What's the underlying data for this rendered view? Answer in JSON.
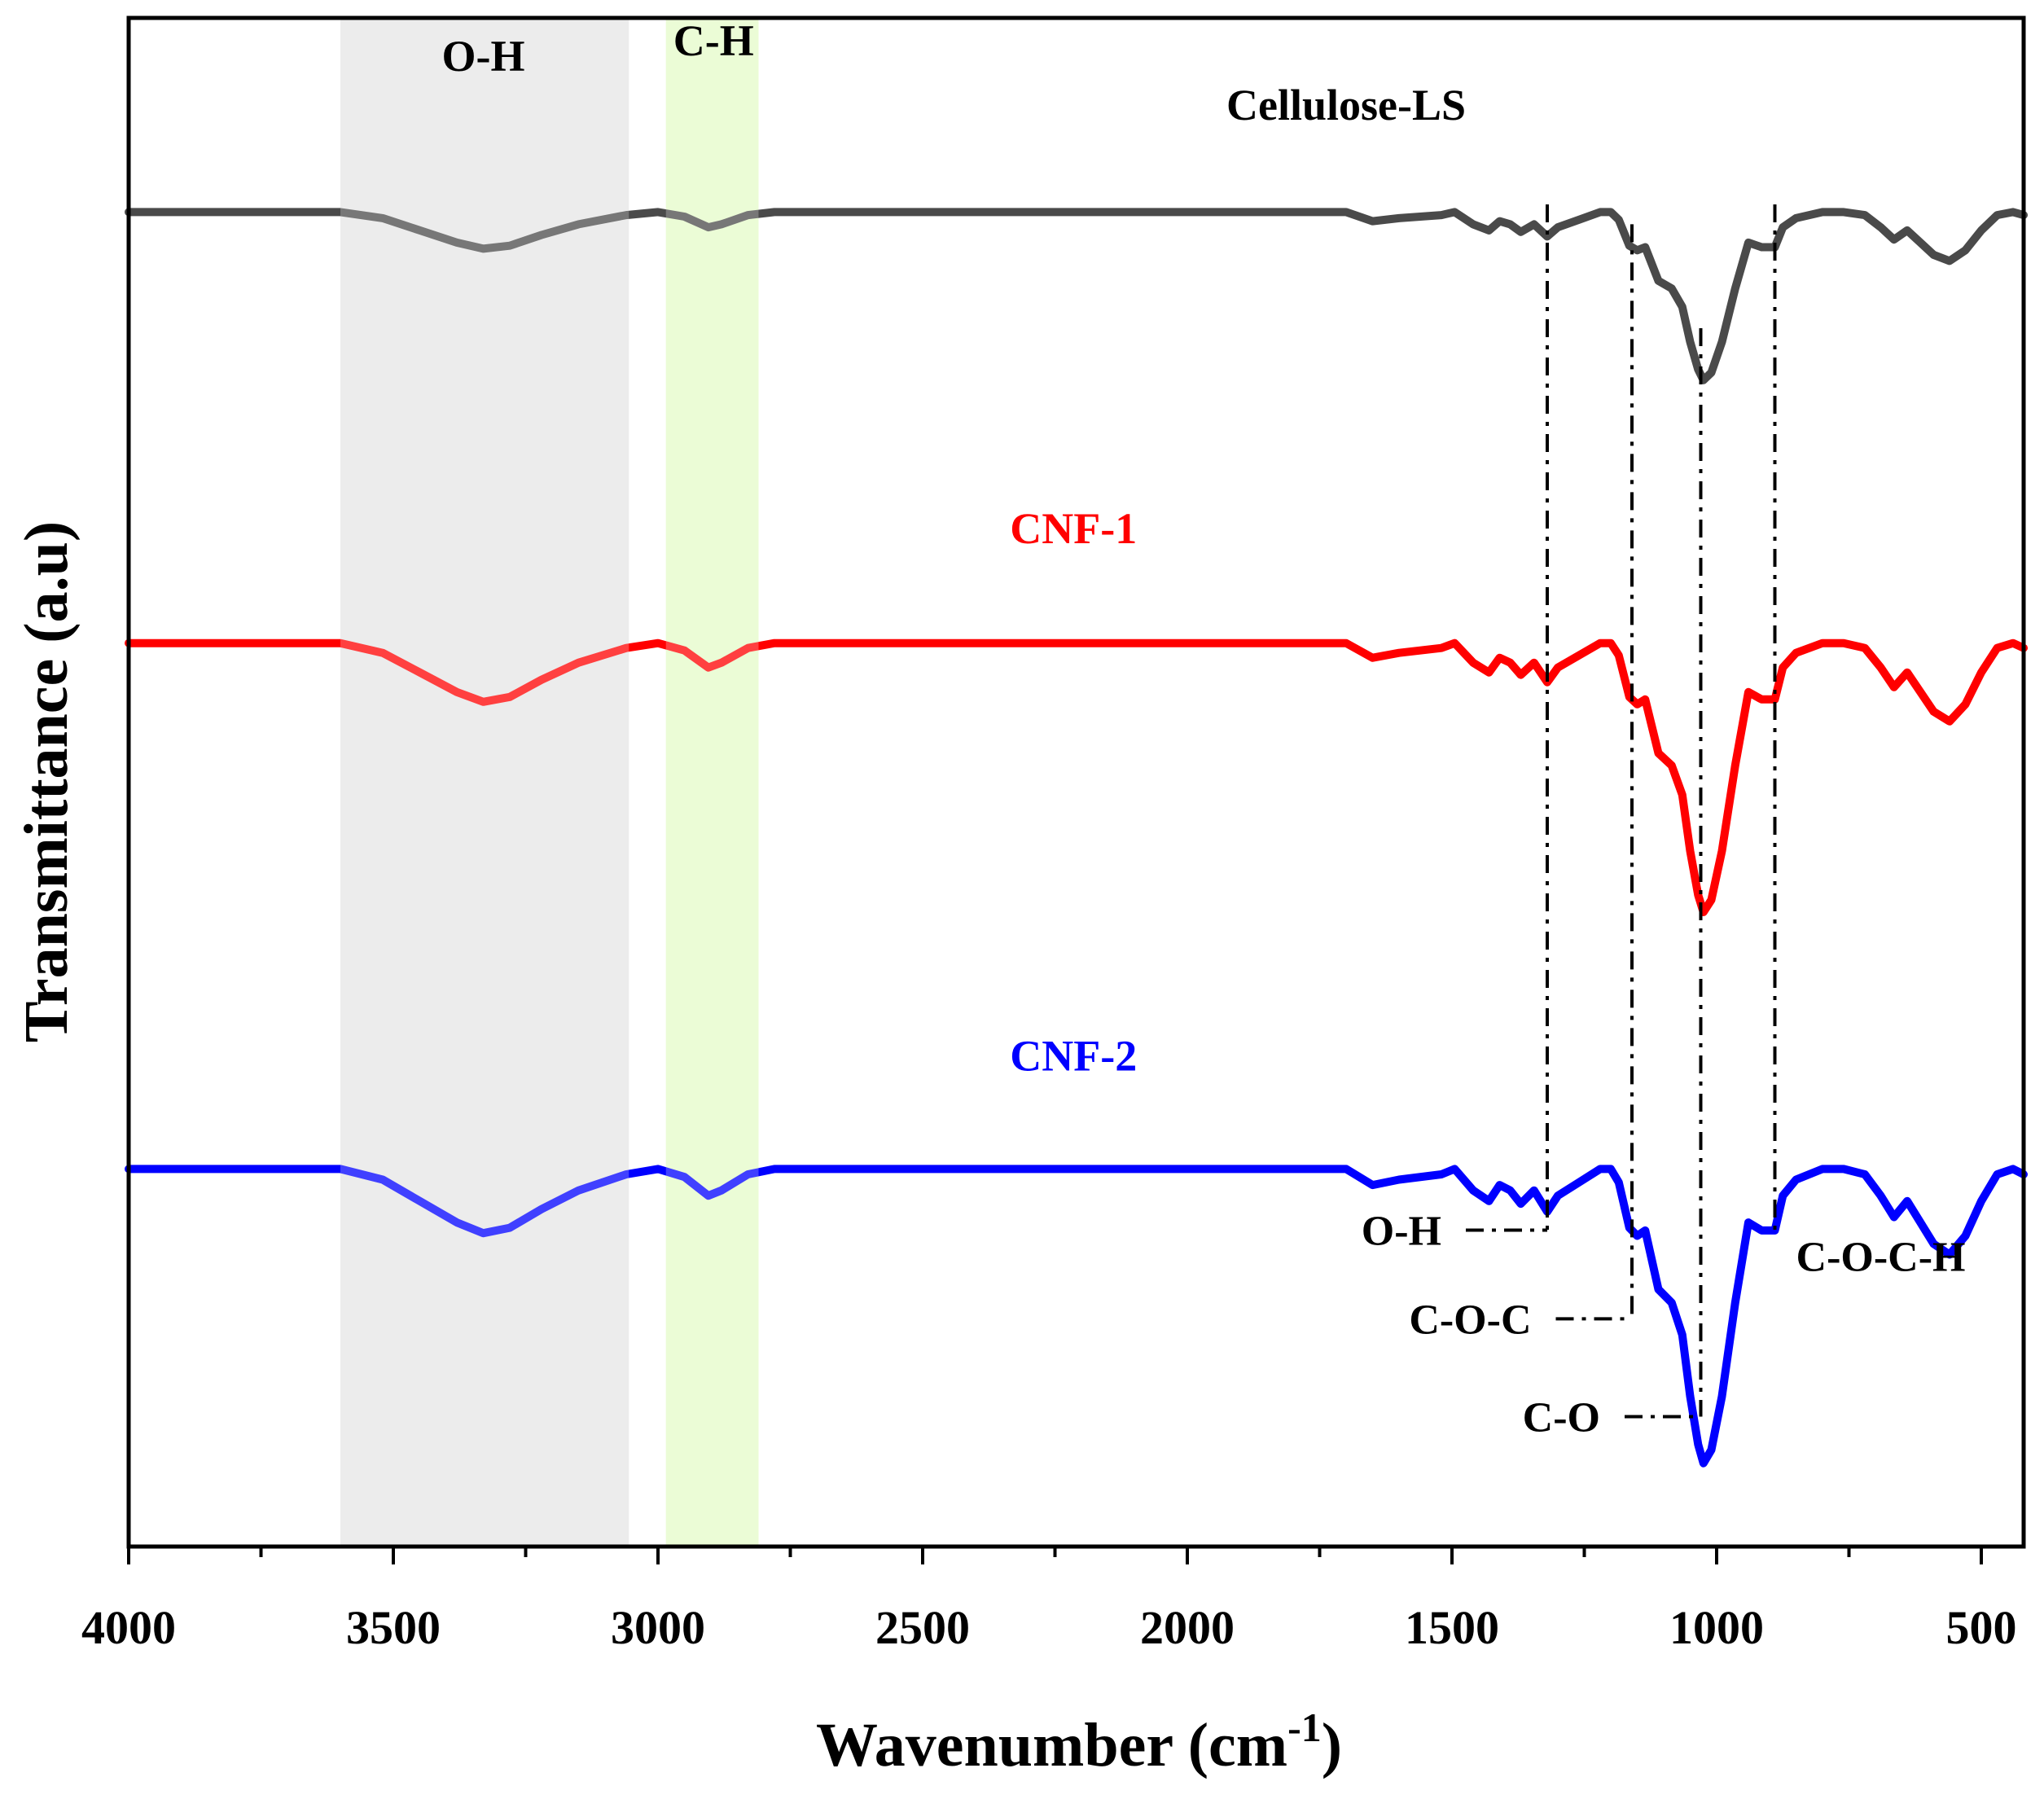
{
  "chart_data": {
    "type": "line",
    "title": "",
    "xlabel": "Wavenumber (cm",
    "xlabel_sup": "-1",
    "xlabel_close": ")",
    "ylabel": "Transmittance (a.u)",
    "xlim": [
      4000,
      420
    ],
    "ylim": [
      0,
      1
    ],
    "x_ticks": [
      4000,
      3500,
      3000,
      2500,
      2000,
      1500,
      1000,
      500
    ],
    "x_tick_labels": [
      "4000",
      "3500",
      "3000",
      "2500",
      "2000",
      "1500",
      "1000",
      "500"
    ],
    "bands": [
      {
        "label": "O-H",
        "from": 3600,
        "to": 3055,
        "color": "#e6e6e6"
      },
      {
        "label": "C-H",
        "from": 2985,
        "to": 2810,
        "color": "#e5fbc8"
      }
    ],
    "series": [
      {
        "name": "Cellulose-LS",
        "color": "#4a4a4a",
        "offset": 0.873,
        "depth_scale": 1.0,
        "points": [
          [
            4000,
            0
          ],
          [
            3600,
            0
          ],
          [
            3520,
            0.004
          ],
          [
            3450,
            0.012
          ],
          [
            3380,
            0.02
          ],
          [
            3330,
            0.024
          ],
          [
            3280,
            0.022
          ],
          [
            3220,
            0.015
          ],
          [
            3150,
            0.008
          ],
          [
            3060,
            0.002
          ],
          [
            3000,
            0
          ],
          [
            2950,
            0.003
          ],
          [
            2905,
            0.01
          ],
          [
            2880,
            0.008
          ],
          [
            2830,
            0.002
          ],
          [
            2780,
            0
          ],
          [
            2500,
            0
          ],
          [
            2000,
            0
          ],
          [
            1700,
            0
          ],
          [
            1650,
            0.006
          ],
          [
            1600,
            0.004
          ],
          [
            1520,
            0.002
          ],
          [
            1495,
            0
          ],
          [
            1460,
            0.008
          ],
          [
            1430,
            0.012
          ],
          [
            1410,
            0.006
          ],
          [
            1390,
            0.008
          ],
          [
            1370,
            0.013
          ],
          [
            1345,
            0.008
          ],
          [
            1320,
            0.016
          ],
          [
            1300,
            0.01
          ],
          [
            1260,
            0.005
          ],
          [
            1220,
            0
          ],
          [
            1200,
            0
          ],
          [
            1185,
            0.005
          ],
          [
            1165,
            0.022
          ],
          [
            1150,
            0.025
          ],
          [
            1135,
            0.023
          ],
          [
            1110,
            0.045
          ],
          [
            1085,
            0.05
          ],
          [
            1065,
            0.062
          ],
          [
            1050,
            0.085
          ],
          [
            1035,
            0.103
          ],
          [
            1025,
            0.11
          ],
          [
            1010,
            0.105
          ],
          [
            990,
            0.085
          ],
          [
            965,
            0.05
          ],
          [
            940,
            0.02
          ],
          [
            915,
            0.023
          ],
          [
            890,
            0.023
          ],
          [
            875,
            0.01
          ],
          [
            850,
            0.004
          ],
          [
            800,
            0
          ],
          [
            760,
            0
          ],
          [
            720,
            0.002
          ],
          [
            690,
            0.01
          ],
          [
            665,
            0.018
          ],
          [
            640,
            0.012
          ],
          [
            615,
            0.02
          ],
          [
            590,
            0.028
          ],
          [
            560,
            0.032
          ],
          [
            530,
            0.025
          ],
          [
            500,
            0.012
          ],
          [
            470,
            0.002
          ],
          [
            440,
            0
          ],
          [
            420,
            0.002
          ]
        ]
      },
      {
        "name": "CNF-1",
        "color": "#ff0000",
        "offset": 0.591,
        "depth_scale": 1.6,
        "points": [
          [
            4000,
            0
          ],
          [
            3600,
            0
          ],
          [
            3520,
            0.004
          ],
          [
            3450,
            0.012
          ],
          [
            3380,
            0.02
          ],
          [
            3330,
            0.024
          ],
          [
            3280,
            0.022
          ],
          [
            3220,
            0.015
          ],
          [
            3150,
            0.008
          ],
          [
            3060,
            0.002
          ],
          [
            3000,
            0
          ],
          [
            2950,
            0.003
          ],
          [
            2905,
            0.01
          ],
          [
            2880,
            0.008
          ],
          [
            2830,
            0.002
          ],
          [
            2780,
            0
          ],
          [
            2500,
            0
          ],
          [
            2000,
            0
          ],
          [
            1700,
            0
          ],
          [
            1650,
            0.006
          ],
          [
            1600,
            0.004
          ],
          [
            1520,
            0.002
          ],
          [
            1495,
            0
          ],
          [
            1460,
            0.008
          ],
          [
            1430,
            0.012
          ],
          [
            1410,
            0.006
          ],
          [
            1390,
            0.008
          ],
          [
            1370,
            0.013
          ],
          [
            1345,
            0.008
          ],
          [
            1320,
            0.016
          ],
          [
            1300,
            0.01
          ],
          [
            1260,
            0.005
          ],
          [
            1220,
            0
          ],
          [
            1200,
            0
          ],
          [
            1185,
            0.005
          ],
          [
            1165,
            0.022
          ],
          [
            1150,
            0.025
          ],
          [
            1135,
            0.023
          ],
          [
            1110,
            0.045
          ],
          [
            1085,
            0.05
          ],
          [
            1065,
            0.062
          ],
          [
            1050,
            0.085
          ],
          [
            1035,
            0.103
          ],
          [
            1025,
            0.11
          ],
          [
            1010,
            0.105
          ],
          [
            990,
            0.085
          ],
          [
            965,
            0.05
          ],
          [
            940,
            0.02
          ],
          [
            915,
            0.023
          ],
          [
            890,
            0.023
          ],
          [
            875,
            0.01
          ],
          [
            850,
            0.004
          ],
          [
            800,
            0
          ],
          [
            760,
            0
          ],
          [
            720,
            0.002
          ],
          [
            690,
            0.01
          ],
          [
            665,
            0.018
          ],
          [
            640,
            0.012
          ],
          [
            615,
            0.02
          ],
          [
            590,
            0.028
          ],
          [
            560,
            0.032
          ],
          [
            530,
            0.025
          ],
          [
            500,
            0.012
          ],
          [
            470,
            0.002
          ],
          [
            440,
            0
          ],
          [
            420,
            0.002
          ]
        ]
      },
      {
        "name": "CNF-2",
        "color": "#0000ff",
        "offset": 0.247,
        "depth_scale": 1.75,
        "points": [
          [
            4000,
            0
          ],
          [
            3600,
            0
          ],
          [
            3520,
            0.004
          ],
          [
            3450,
            0.012
          ],
          [
            3380,
            0.02
          ],
          [
            3330,
            0.024
          ],
          [
            3280,
            0.022
          ],
          [
            3220,
            0.015
          ],
          [
            3150,
            0.008
          ],
          [
            3060,
            0.002
          ],
          [
            3000,
            0
          ],
          [
            2950,
            0.003
          ],
          [
            2905,
            0.01
          ],
          [
            2880,
            0.008
          ],
          [
            2830,
            0.002
          ],
          [
            2780,
            0
          ],
          [
            2500,
            0
          ],
          [
            2000,
            0
          ],
          [
            1700,
            0
          ],
          [
            1650,
            0.006
          ],
          [
            1600,
            0.004
          ],
          [
            1520,
            0.002
          ],
          [
            1495,
            0
          ],
          [
            1460,
            0.008
          ],
          [
            1430,
            0.012
          ],
          [
            1410,
            0.006
          ],
          [
            1390,
            0.008
          ],
          [
            1370,
            0.013
          ],
          [
            1345,
            0.008
          ],
          [
            1320,
            0.016
          ],
          [
            1300,
            0.01
          ],
          [
            1260,
            0.005
          ],
          [
            1220,
            0
          ],
          [
            1200,
            0
          ],
          [
            1185,
            0.005
          ],
          [
            1165,
            0.022
          ],
          [
            1150,
            0.025
          ],
          [
            1135,
            0.023
          ],
          [
            1110,
            0.045
          ],
          [
            1085,
            0.05
          ],
          [
            1065,
            0.062
          ],
          [
            1050,
            0.085
          ],
          [
            1035,
            0.103
          ],
          [
            1025,
            0.11
          ],
          [
            1010,
            0.105
          ],
          [
            990,
            0.085
          ],
          [
            965,
            0.05
          ],
          [
            940,
            0.02
          ],
          [
            915,
            0.023
          ],
          [
            890,
            0.023
          ],
          [
            875,
            0.01
          ],
          [
            850,
            0.004
          ],
          [
            800,
            0
          ],
          [
            760,
            0
          ],
          [
            720,
            0.002
          ],
          [
            690,
            0.01
          ],
          [
            665,
            0.018
          ],
          [
            640,
            0.012
          ],
          [
            615,
            0.02
          ],
          [
            590,
            0.028
          ],
          [
            560,
            0.032
          ],
          [
            530,
            0.025
          ],
          [
            500,
            0.012
          ],
          [
            470,
            0.002
          ],
          [
            440,
            0
          ],
          [
            420,
            0.002
          ]
        ]
      }
    ],
    "series_labels": [
      {
        "text": "Cellulose-LS",
        "color": "#000000",
        "x": 1700,
        "y": 0.943
      },
      {
        "text": "CNF-1",
        "color": "#ff0000",
        "x": 2215,
        "y": 0.666
      },
      {
        "text": "CNF-2",
        "color": "#0000ff",
        "x": 2215,
        "y": 0.321
      }
    ],
    "band_labels": [
      {
        "text": "O-H",
        "x": 3330,
        "y": 0.975
      },
      {
        "text": "C-H",
        "x": 2895,
        "y": 0.985
      }
    ],
    "peak_markers": [
      {
        "label": "O-H",
        "wavenumber": 1320,
        "y_top": 0.878,
        "y_bottom": 0.207,
        "label_x": 1520,
        "label_y": 0.207
      },
      {
        "label": "C-O-C",
        "wavenumber": 1160,
        "y_top": 0.865,
        "y_bottom": 0.149,
        "label_x": 1350,
        "label_y": 0.149
      },
      {
        "label": "C-O",
        "wavenumber": 1030,
        "y_top": 0.797,
        "y_bottom": 0.085,
        "label_x": 1220,
        "label_y": 0.085
      },
      {
        "label": "C-O-C-H",
        "wavenumber": 890,
        "y_top": 0.878,
        "y_bottom": 0.207,
        "label_x": 690,
        "label_y": 0.19
      }
    ]
  }
}
